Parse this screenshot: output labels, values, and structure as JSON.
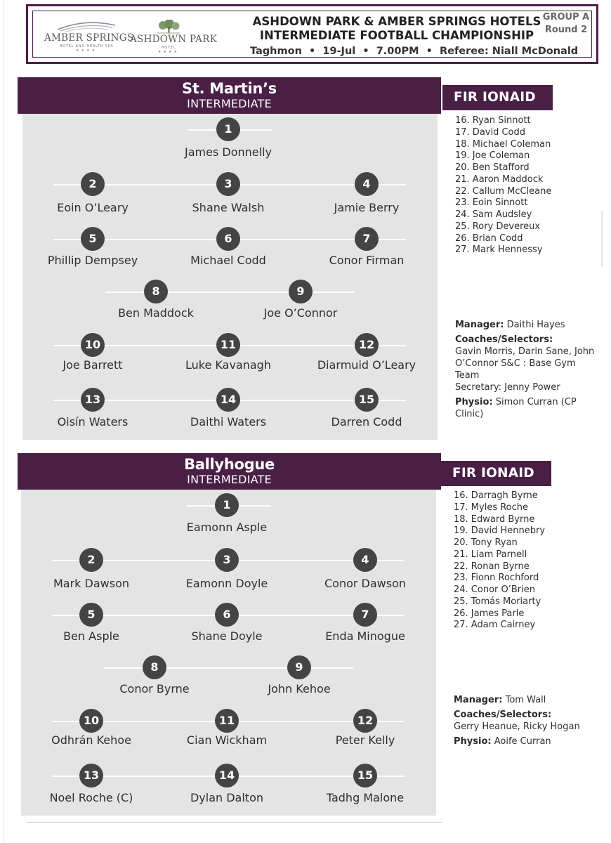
{
  "header": {
    "title_line1": "ASHDOWN PARK & AMBER SPRINGS HOTELS",
    "title_line2": "INTERMEDIATE FOOTBALL CHAMPIONSHIP",
    "meta": "Taghmon  •  19-Jul  •  7.00PM  •  Referee: Niall McDonald",
    "group": "GROUP A",
    "round": "Round 2",
    "logos": {
      "amber": {
        "name": "AMBER SPRINGS",
        "sub": "HOTEL AND HEALTH SPA",
        "stars": "★★★★"
      },
      "ashdown": {
        "name": "ASHDOWN PARK",
        "sub": "HOTEL",
        "stars": "★★★★"
      }
    }
  },
  "colors": {
    "brand": "#4a1f45",
    "pitch": "#e4e4e4",
    "number_circle": "#444444"
  },
  "teams": [
    {
      "name": "St. Martin’s",
      "level": "INTERMEDIATE",
      "subs_title": "FIR IONAID",
      "players": [
        {
          "n": "1",
          "name": "James Donnelly"
        },
        {
          "n": "2",
          "name": "Eoin O’Leary"
        },
        {
          "n": "3",
          "name": "Shane Walsh"
        },
        {
          "n": "4",
          "name": "Jamie Berry"
        },
        {
          "n": "5",
          "name": "Phillip Dempsey"
        },
        {
          "n": "6",
          "name": "Michael Codd"
        },
        {
          "n": "7",
          "name": "Conor Firman"
        },
        {
          "n": "8",
          "name": "Ben Maddock"
        },
        {
          "n": "9",
          "name": "Joe O’Connor"
        },
        {
          "n": "10",
          "name": "Joe Barrett"
        },
        {
          "n": "11",
          "name": "Luke Kavanagh"
        },
        {
          "n": "12",
          "name": "Diarmuid O’Leary"
        },
        {
          "n": "13",
          "name": "Oisín Waters"
        },
        {
          "n": "14",
          "name": "Daithi Waters"
        },
        {
          "n": "15",
          "name": "Darren Codd"
        }
      ],
      "subs": [
        "16. Ryan Sinnott",
        "17. David Codd",
        "18. Michael Coleman",
        "19. Joe Coleman",
        "20. Ben Stafford",
        "21. Aaron Maddock",
        "22. Callum McCleane",
        "23. Eoin Sinnott",
        "24. Sam Audsley",
        "25. Rory Devereux",
        "26. Brian Codd",
        "27. Mark Hennessy"
      ],
      "manager_label": "Manager:",
      "manager": "Daithi Hayes",
      "coaches_label": "Coaches/Selectors:",
      "coaches": "Gavin Morris,  Darin Sane, John O’Connor S&C : Base Gym Team",
      "secretary": "Secretary: Jenny Power",
      "physio_label": "Physio:",
      "physio": "Simon Curran (CP Clinic)"
    },
    {
      "name": "Ballyhogue",
      "level": "INTERMEDIATE",
      "subs_title": "FIR IONAID",
      "players": [
        {
          "n": "1",
          "name": "Eamonn Asple"
        },
        {
          "n": "2",
          "name": "Mark Dawson"
        },
        {
          "n": "3",
          "name": "Eamonn Doyle"
        },
        {
          "n": "4",
          "name": "Conor Dawson"
        },
        {
          "n": "5",
          "name": "Ben Asple"
        },
        {
          "n": "6",
          "name": "Shane Doyle"
        },
        {
          "n": "7",
          "name": "Enda Minogue"
        },
        {
          "n": "8",
          "name": "Conor Byrne"
        },
        {
          "n": "9",
          "name": "John Kehoe"
        },
        {
          "n": "10",
          "name": "Odhrán Kehoe"
        },
        {
          "n": "11",
          "name": "Cian Wickham"
        },
        {
          "n": "12",
          "name": "Peter Kelly"
        },
        {
          "n": "13",
          "name": "Noel Roche (C)"
        },
        {
          "n": "14",
          "name": "Dylan Dalton"
        },
        {
          "n": "15",
          "name": "Tadhg Malone"
        }
      ],
      "subs": [
        "16. Darragh Byrne",
        "17. Myles Roche",
        "18. Edward Byrne",
        "19. David Hennebry",
        "20. Tony Ryan",
        "21. Liam Parnell",
        "22. Ronan Byrne",
        "23. Fionn Rochford",
        "24. Conor O’Brien",
        "25. Tomás Moriarty",
        "26. James Parle",
        "27. Adam Cairney"
      ],
      "manager_label": "Manager:",
      "manager": "Tom Wall",
      "coaches_label": "Coaches/Selectors:",
      "coaches": "Gerry Heanue, Ricky Hogan",
      "physio_label": "Physio:",
      "physio": "Aoife Curran"
    }
  ]
}
